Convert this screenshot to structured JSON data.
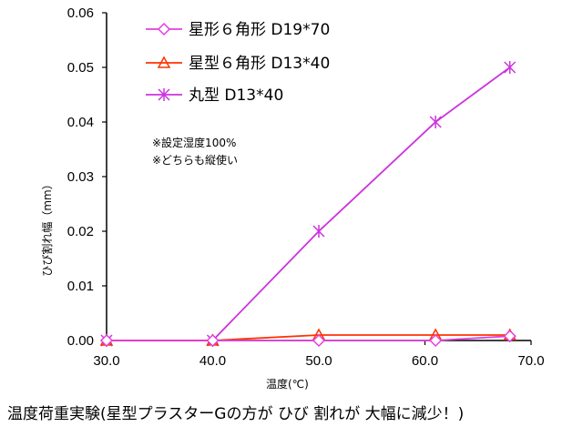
{
  "chart_data": {
    "type": "line",
    "title": "",
    "xlabel": "温度(℃)",
    "ylabel": "ひび割れ幅（mm）",
    "xlim": [
      30,
      70
    ],
    "ylim": [
      0,
      0.06
    ],
    "x_ticks": [
      "30.0",
      "40.0",
      "50.0",
      "60.0",
      "70.0"
    ],
    "y_ticks": [
      "0.00",
      "0.01",
      "0.02",
      "0.03",
      "0.04",
      "0.05",
      "0.06"
    ],
    "grid": false,
    "legend_position": "top-left",
    "series": [
      {
        "name": "星形６角形 D19*70",
        "marker": "diamond",
        "color": "#e040e0",
        "x": [
          30,
          40,
          50,
          61,
          68
        ],
        "y": [
          0,
          0,
          0,
          0,
          0.0008
        ]
      },
      {
        "name": "星型６角形 D13*40",
        "marker": "triangle",
        "color": "#ff3300",
        "x": [
          30,
          40,
          50,
          61,
          68
        ],
        "y": [
          0,
          0,
          0.001,
          0.001,
          0.001
        ]
      },
      {
        "name": "丸型 D13*40",
        "marker": "asterisk",
        "color": "#cc33dd",
        "x": [
          30,
          40,
          50,
          61,
          68
        ],
        "y": [
          0,
          0,
          0.02,
          0.04,
          0.05
        ]
      }
    ],
    "annotations": [
      "※設定湿度100%",
      "※どちらも縦使い"
    ]
  },
  "caption": "温度荷重実験(星型プラスターGの方が ひび 割れが 大幅に減少！)"
}
